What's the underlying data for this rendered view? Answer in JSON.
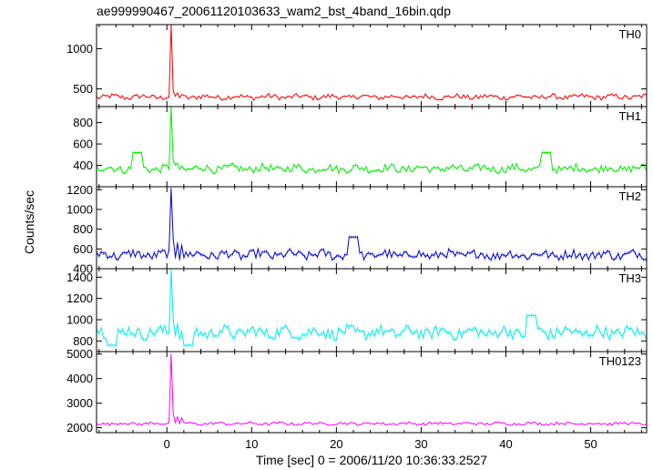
{
  "chart_data": {
    "type": "line",
    "title": "ae999990467_20061120103633_wam2_bst_4band_16bin.qdp",
    "xlabel": "Time [sec] 0 = 2006/11/20 10:36:33.2527",
    "ylabel": "Counts/sec",
    "xlim": [
      -8.3,
      56.6
    ],
    "xticks": [
      0,
      10,
      20,
      30,
      40,
      50
    ],
    "x_step": 0.25,
    "grid": false,
    "panels": [
      {
        "name": "TH0",
        "color": "#ff0000",
        "ylim": [
          280,
          1300
        ],
        "yticks": [
          500,
          1000
        ],
        "baseline": 400,
        "noise": 30,
        "peak_x": 0.5,
        "peak_y": 1300,
        "after_peak": [
          [
            0.75,
            470
          ],
          [
            1.25,
            450
          ],
          [
            1.75,
            430
          ]
        ],
        "bumps": []
      },
      {
        "name": "TH1",
        "color": "#00ee00",
        "ylim": [
          200,
          950
        ],
        "yticks": [
          400,
          600,
          800
        ],
        "baseline": 370,
        "noise": 35,
        "peak_x": 0.5,
        "peak_y": 950,
        "after_peak": [
          [
            0.75,
            440
          ],
          [
            1.25,
            420
          ]
        ],
        "bumps": [
          [
            -3.5,
            520
          ],
          [
            44.8,
            520
          ]
        ]
      },
      {
        "name": "TH2",
        "color": "#0000dd",
        "ylim": [
          400,
          1230
        ],
        "yticks": [
          400,
          600,
          800,
          1000,
          1200
        ],
        "baseline": 540,
        "noise": 45,
        "peak_x": 0.5,
        "peak_y": 1210,
        "after_peak": [
          [
            0.75,
            700
          ],
          [
            1.25,
            660
          ],
          [
            1.75,
            640
          ]
        ],
        "bumps": [
          [
            22,
            720
          ]
        ]
      },
      {
        "name": "TH3",
        "color": "#00eeee",
        "ylim": [
          700,
          1480
        ],
        "yticks": [
          800,
          1000,
          1200,
          1400
        ],
        "baseline": 880,
        "noise": 55,
        "peak_x": 0.5,
        "peak_y": 1470,
        "after_peak": [
          [
            0.75,
            1000
          ],
          [
            1.25,
            960
          ]
        ],
        "bumps": [
          [
            43,
            1040
          ],
          [
            2.5,
            760
          ],
          [
            -6.5,
            760
          ]
        ]
      },
      {
        "name": "TH0123",
        "color": "#ff00ff",
        "ylim": [
          1800,
          5100
        ],
        "yticks": [
          2000,
          3000,
          4000,
          5000
        ],
        "baseline": 2170,
        "noise": 55,
        "peak_x": 0.5,
        "peak_y": 5000,
        "after_peak": [
          [
            0.75,
            2550
          ],
          [
            1.25,
            2450
          ],
          [
            1.75,
            2400
          ]
        ],
        "bumps": []
      }
    ]
  }
}
